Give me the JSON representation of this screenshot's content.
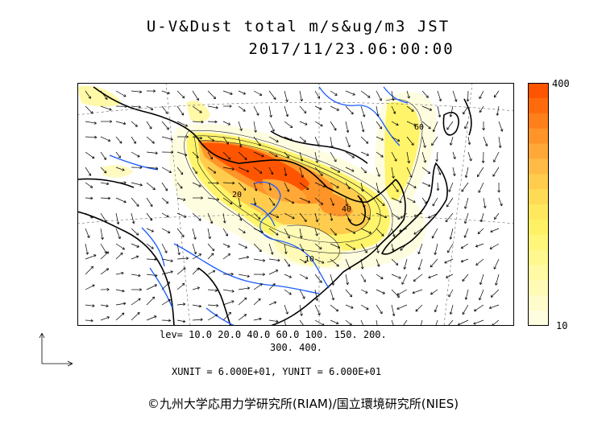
{
  "title_line1": "U-V&Dust total m/s&ug/m3 JST",
  "title_line2": "2017/11/23.06:00:00",
  "colorbar": {
    "max_label": "400",
    "min_label": "10",
    "colors": [
      "#ff5500",
      "#ff6a0d",
      "#ff7f1a",
      "#ff9429",
      "#ffa838",
      "#ffbb45",
      "#ffcc4d",
      "#ffdb55",
      "#ffe85d",
      "#fff166",
      "#fff67a",
      "#fff88f",
      "#fffaa3",
      "#fffbb7",
      "#fffccb",
      "#fffde0"
    ]
  },
  "lev_line1": "lev= 10.0 20.0 40.0 60.0 100. 150. 200.",
  "lev_line2": "300. 400.",
  "units_line": "XUNIT = 6.000E+01, YUNIT = 6.000E+01",
  "copyright": "©九州大学応用力学研究所(RIAM)/国立環境研究所(NIES)",
  "contour_labels": [
    "20",
    "40",
    "60",
    "10"
  ],
  "colors": {
    "coast": "#000000",
    "rivers": "#1a5cff",
    "dust_high": "#ff5500",
    "dust_low": "#fffde0"
  }
}
